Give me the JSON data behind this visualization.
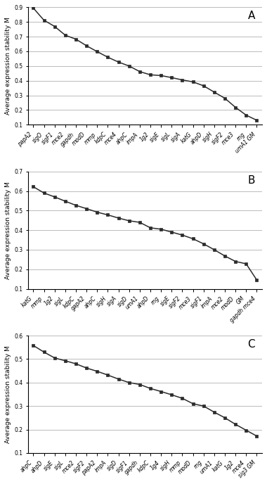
{
  "panel_A": {
    "label": "A",
    "categories": [
      "papA2",
      "sigO",
      "sigF1",
      "mce2",
      "gapdh",
      "modD",
      "mmp",
      "kdpC",
      "mce4",
      "ahpC",
      "impA",
      "1g2",
      "sigE",
      "sigL",
      "sigA",
      "katG",
      "ahpD",
      "sigH",
      "sigF2",
      "mce3",
      "rng",
      "umA1 GM"
    ],
    "values": [
      0.895,
      0.812,
      0.77,
      0.71,
      0.683,
      0.638,
      0.598,
      0.56,
      0.527,
      0.5,
      0.462,
      0.44,
      0.435,
      0.421,
      0.405,
      0.392,
      0.365,
      0.322,
      0.28,
      0.218,
      0.165,
      0.13
    ],
    "ylim": [
      0.1,
      0.9
    ],
    "yticks": [
      0.1,
      0.2,
      0.3,
      0.4,
      0.5,
      0.6,
      0.7,
      0.8,
      0.9
    ]
  },
  "panel_B": {
    "label": "B",
    "categories": [
      "katG",
      "mmp",
      "1g2",
      "sigL",
      "kdpC",
      "gapA2",
      "ahpC",
      "sigH",
      "sigA",
      "sigD",
      "umA1",
      "ahpD",
      "rng",
      "sigE",
      "sigF2",
      "mce3",
      "sigF1",
      "impA",
      "mce2",
      "modD",
      "GM",
      "gapdh mce4"
    ],
    "values": [
      0.622,
      0.59,
      0.57,
      0.548,
      0.527,
      0.51,
      0.492,
      0.478,
      0.462,
      0.448,
      0.44,
      0.412,
      0.405,
      0.39,
      0.375,
      0.356,
      0.33,
      0.3,
      0.268,
      0.24,
      0.228,
      0.145
    ],
    "ylim": [
      0.1,
      0.7
    ],
    "yticks": [
      0.1,
      0.2,
      0.3,
      0.4,
      0.5,
      0.6,
      0.7
    ]
  },
  "panel_C": {
    "label": "C",
    "categories": [
      "ahpC",
      "ahpD",
      "sigE",
      "sigL",
      "mce2",
      "sigF2",
      "papA2",
      "impA",
      "sigD",
      "sigF1",
      "gapdh",
      "kdpC",
      "1g4",
      "sigH",
      "mmp",
      "modD",
      "rng",
      "umA1",
      "katG",
      "1g2",
      "mce4",
      "sig3 GM"
    ],
    "values": [
      0.558,
      0.53,
      0.505,
      0.493,
      0.48,
      0.462,
      0.448,
      0.432,
      0.415,
      0.4,
      0.392,
      0.375,
      0.362,
      0.348,
      0.333,
      0.31,
      0.3,
      0.274,
      0.25,
      0.222,
      0.197,
      0.172
    ],
    "ylim": [
      0.1,
      0.6
    ],
    "yticks": [
      0.1,
      0.2,
      0.3,
      0.4,
      0.5,
      0.6
    ]
  },
  "ylabel": "Average expression stability M",
  "line_color": "#2b2b2b",
  "marker": "s",
  "markersize": 3.0,
  "linewidth": 1.1,
  "bg_color": "#ffffff",
  "grid_color": "#bbbbbb",
  "tick_fontsize": 5.5,
  "label_fontsize": 6.5,
  "panel_label_fontsize": 11
}
